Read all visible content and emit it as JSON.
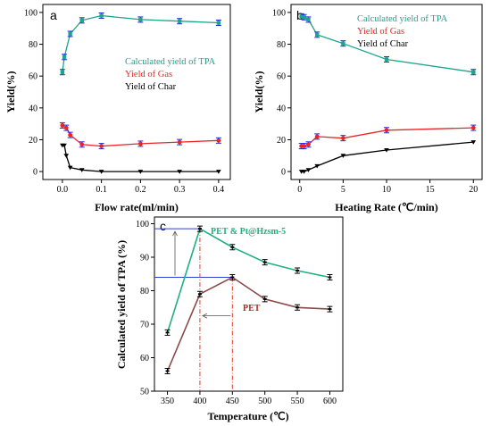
{
  "colors": {
    "tpa": "#1aa58c",
    "gas": "#e8262a",
    "char": "#000000",
    "errorbar": "#1f2bd6",
    "pet_pt": "#1fb27e",
    "pet": "#8a4a4a",
    "guide_blue": "#2f3fd6",
    "guide_red": "#e0392b",
    "arrow": "#555555"
  },
  "chart_data": [
    {
      "panel": "a",
      "type": "line",
      "xlabel": "Flow rate(ml/min)",
      "ylabel": "Yield(%)",
      "xlim": [
        -0.05,
        0.43
      ],
      "ylim": [
        -5,
        105
      ],
      "xticks": [
        0.0,
        0.1,
        0.2,
        0.3,
        0.4
      ],
      "xtick_labels": [
        "0.0",
        "0.1",
        "0.2",
        "0.3",
        "0.4"
      ],
      "yticks": [
        0,
        20,
        40,
        60,
        80,
        100
      ],
      "legend_position": "right-middle",
      "series": [
        {
          "name": "Calculated yield of TPA",
          "color_key": "tpa",
          "marker": "square",
          "x": [
            0.0,
            0.005,
            0.02,
            0.05,
            0.1,
            0.2,
            0.3,
            0.4
          ],
          "y": [
            62.5,
            72,
            86.5,
            95,
            98,
            95.5,
            94.5,
            93.5
          ]
        },
        {
          "name": "Yield of Gas",
          "color_key": "gas",
          "marker": "circle",
          "x": [
            0.0,
            0.01,
            0.02,
            0.05,
            0.1,
            0.2,
            0.3,
            0.4
          ],
          "y": [
            29,
            27.5,
            23,
            17,
            16,
            17.5,
            18.5,
            19.5
          ]
        },
        {
          "name": "Yield of Char",
          "color_key": "char",
          "marker": "triangle-down",
          "x": [
            0.0,
            0.005,
            0.01,
            0.02,
            0.05,
            0.1,
            0.2,
            0.3,
            0.4
          ],
          "y": [
            16.5,
            16.5,
            10,
            2.5,
            1,
            0,
            0,
            0,
            0
          ]
        }
      ]
    },
    {
      "panel": "b",
      "type": "line",
      "xlabel": "Heating Rate (℃/min)",
      "ylabel": "Yield(%)",
      "xlim": [
        -1,
        21
      ],
      "ylim": [
        -5,
        105
      ],
      "xticks": [
        0,
        5,
        10,
        15,
        20
      ],
      "xtick_labels": [
        "0",
        "5",
        "10",
        "15",
        "20"
      ],
      "yticks": [
        0,
        20,
        40,
        60,
        80,
        100
      ],
      "legend_position": "top-right",
      "series": [
        {
          "name": "Calculated yield of TPA",
          "color_key": "tpa",
          "marker": "square",
          "x": [
            0.2,
            0.5,
            1,
            2,
            5,
            10,
            20
          ],
          "y": [
            97.5,
            97,
            95.5,
            86,
            80.5,
            70.5,
            62.5
          ]
        },
        {
          "name": "Yield of Gas",
          "color_key": "gas",
          "marker": "circle",
          "x": [
            0.2,
            0.5,
            1,
            2,
            5,
            10,
            20
          ],
          "y": [
            16,
            16,
            17,
            22,
            21,
            26,
            27.5
          ]
        },
        {
          "name": "Yield of Char",
          "color_key": "char",
          "marker": "triangle-down",
          "x": [
            0.2,
            0.5,
            1,
            2,
            5,
            10,
            20
          ],
          "y": [
            0,
            0,
            1,
            3.5,
            10,
            13.5,
            18.5
          ]
        }
      ]
    },
    {
      "panel": "c",
      "type": "line",
      "xlabel": "Temperature (℃)",
      "ylabel": "Calculated yield of TPA (%)",
      "xlim": [
        330,
        620
      ],
      "ylim": [
        50,
        102
      ],
      "xticks": [
        350,
        400,
        450,
        500,
        550,
        600
      ],
      "xtick_labels": [
        "350",
        "400",
        "450",
        "500",
        "550",
        "600"
      ],
      "yticks": [
        50,
        60,
        70,
        80,
        90,
        100
      ],
      "series": [
        {
          "name": "PET & Pt@Hzsm-5",
          "color_key": "pet_pt",
          "x": [
            350,
            400,
            450,
            500,
            550,
            600
          ],
          "y": [
            67.5,
            98.5,
            93,
            88.5,
            86,
            84
          ]
        },
        {
          "name": "PET",
          "color_key": "pet",
          "x": [
            350,
            400,
            450,
            500,
            550,
            600
          ],
          "y": [
            56,
            79,
            84,
            77.5,
            75,
            74.5
          ]
        }
      ],
      "annotations": {
        "hline_high": 98.5,
        "hline_low": 84,
        "vline_1": 400,
        "vline_2": 450
      }
    }
  ],
  "legend_labels": {
    "tpa": "Calculated yield of TPA",
    "gas": "Yield of Gas",
    "char": "Yield of Char"
  },
  "panel_c_labels": {
    "pet_pt": "PET  &  Pt@Hzsm-5",
    "pet": "PET"
  }
}
